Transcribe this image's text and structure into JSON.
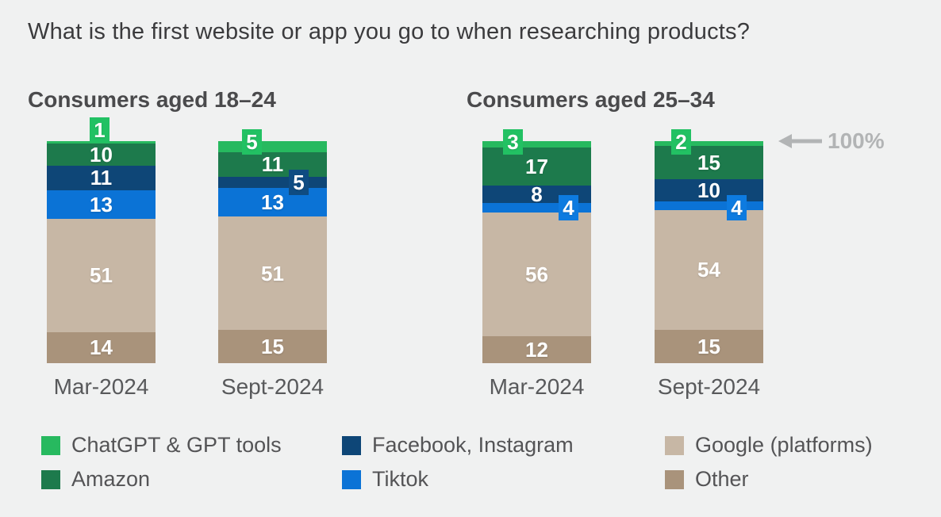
{
  "chart_data": {
    "type": "bar",
    "stacked": true,
    "value_unit": "%",
    "title": "What is the first website or app you go to when researching products?",
    "ylim": [
      0,
      100
    ],
    "grid": false,
    "annotation": {
      "text": "100%",
      "points_to": "top of stacked bars (100% line)"
    },
    "segment_order_top_to_bottom": [
      "chatgpt",
      "amazon",
      "facebook",
      "tiktok",
      "google",
      "other"
    ],
    "legend": [
      {
        "key": "chatgpt",
        "label": "ChatGPT & GPT tools"
      },
      {
        "key": "amazon",
        "label": "Amazon"
      },
      {
        "key": "facebook",
        "label": "Facebook, Instagram"
      },
      {
        "key": "tiktok",
        "label": "Tiktok"
      },
      {
        "key": "google",
        "label": "Google (platforms)"
      },
      {
        "key": "other",
        "label": "Other"
      }
    ],
    "groups": [
      {
        "title": "Consumers aged 18–24",
        "bars": [
          {
            "category": "Mar-2024",
            "values": {
              "chatgpt": 1,
              "amazon": 10,
              "facebook": 11,
              "tiktok": 13,
              "google": 51,
              "other": 14
            }
          },
          {
            "category": "Sept-2024",
            "values": {
              "chatgpt": 5,
              "amazon": 11,
              "facebook": 5,
              "tiktok": 13,
              "google": 51,
              "other": 15
            }
          }
        ]
      },
      {
        "title": "Consumers aged 25–34",
        "bars": [
          {
            "category": "Mar-2024",
            "values": {
              "chatgpt": 3,
              "amazon": 17,
              "facebook": 8,
              "tiktok": 4,
              "google": 56,
              "other": 12
            }
          },
          {
            "category": "Sept-2024",
            "values": {
              "chatgpt": 2,
              "amazon": 15,
              "facebook": 10,
              "tiktok": 4,
              "google": 54,
              "other": 15
            }
          }
        ]
      }
    ]
  },
  "colors": {
    "background": "#f0f1f1",
    "chatgpt": "#27b95f",
    "chatgpt_badge": "#22c163",
    "amazon": "#1d7a4c",
    "facebook": "#0e4677",
    "facebook_badge": "#0f4c82",
    "tiktok": "#0b73d6",
    "tiktok_badge": "#0d7be0",
    "google": "#c7b7a5",
    "other": "#a9937b",
    "title_text": "#3b3b3d",
    "heading_text": "#4a4a4c",
    "axis_text": "#58595b",
    "legend_text": "#545456",
    "annotation_gray": "#b2b4b5"
  }
}
